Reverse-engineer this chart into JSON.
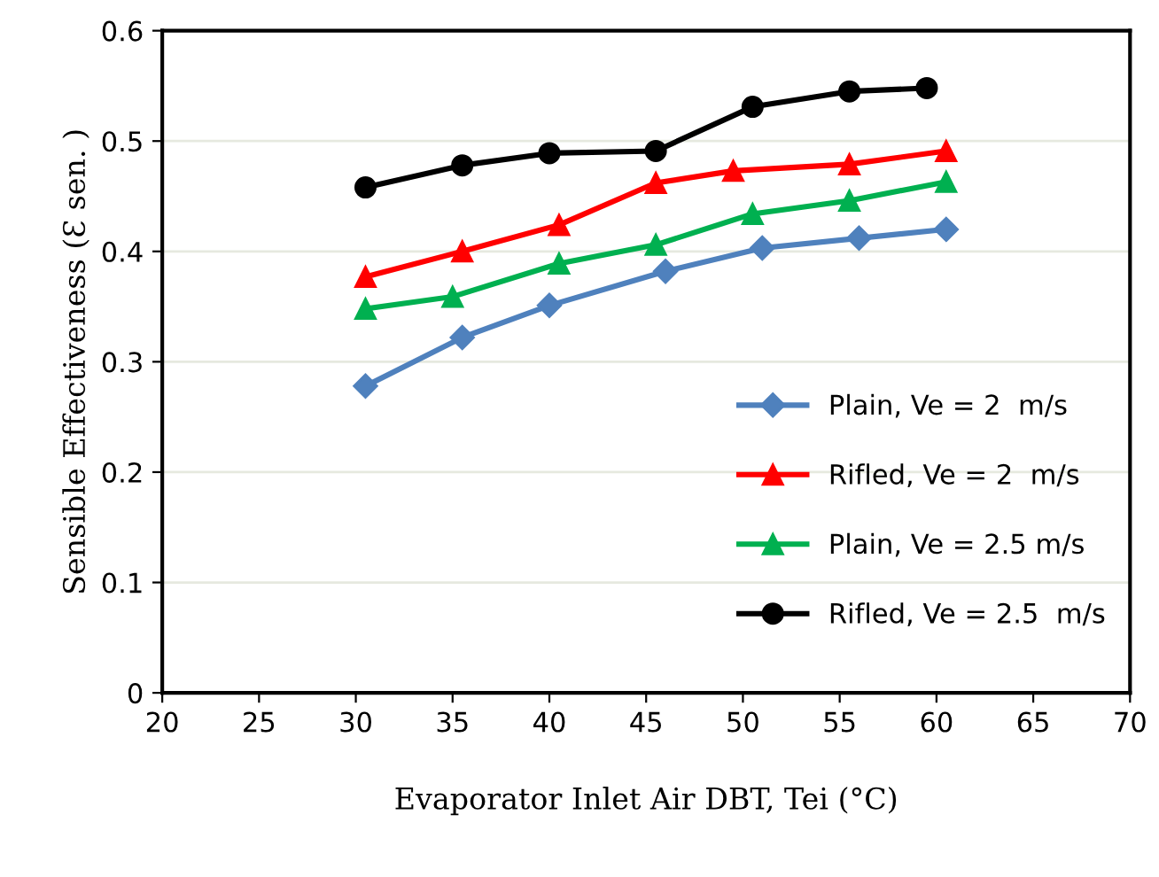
{
  "chart_data": {
    "type": "line",
    "xlabel": "Evaporator Inlet Air DBT, Tei (°C)",
    "ylabel": "Sensible Effectiveness (Ɛ sen. )",
    "xlim": [
      20,
      70
    ],
    "xticks": [
      20,
      25,
      30,
      35,
      40,
      45,
      50,
      55,
      60,
      65,
      70
    ],
    "ylim": [
      0,
      0.6
    ],
    "yticks": [
      0,
      0.1,
      0.2,
      0.3,
      0.4,
      0.5,
      0.6
    ],
    "grid": "y",
    "legend": "bottom right",
    "line_style": "solid",
    "series": [
      {
        "name": "Plain, Ve = 2  m/s",
        "color": "#4f81bd",
        "marker": "diamond",
        "x": [
          30.5,
          35.5,
          40,
          46,
          51,
          56,
          60.5
        ],
        "values": [
          0.278,
          0.322,
          0.351,
          0.382,
          0.403,
          0.412,
          0.42
        ]
      },
      {
        "name": "Rifled, Ve = 2  m/s",
        "color": "#ff0000",
        "marker": "triangle",
        "x": [
          30.5,
          35.5,
          40.5,
          45.5,
          49.5,
          55.5,
          60.5
        ],
        "values": [
          0.377,
          0.4,
          0.424,
          0.462,
          0.473,
          0.479,
          0.491
        ]
      },
      {
        "name": "Plain, Ve = 2.5 m/s",
        "color": "#00b050",
        "marker": "triangle",
        "x": [
          30.5,
          35,
          40.5,
          45.5,
          50.5,
          55.5,
          60.5
        ],
        "values": [
          0.348,
          0.359,
          0.389,
          0.406,
          0.434,
          0.446,
          0.463
        ]
      },
      {
        "name": "Rifled, Ve = 2.5  m/s",
        "color": "#000000",
        "marker": "circle",
        "x": [
          30.5,
          35.5,
          40,
          45.5,
          50.5,
          55.5,
          59.5
        ],
        "values": [
          0.458,
          0.478,
          0.489,
          0.491,
          0.531,
          0.545,
          0.548
        ]
      }
    ]
  }
}
